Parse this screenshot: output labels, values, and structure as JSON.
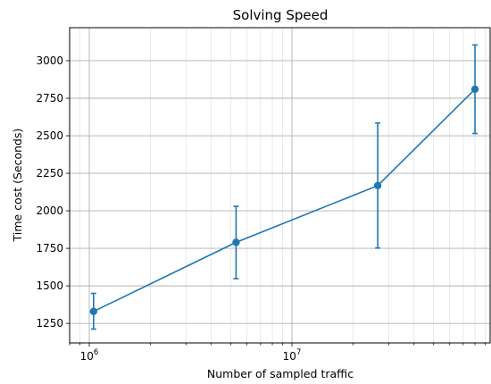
{
  "chart_data": {
    "type": "line",
    "title": "Solving Speed",
    "xlabel": "Number of sampled traffic",
    "ylabel": "Time cost (Seconds)",
    "x_scale": "log",
    "xlim": [
      800000,
      95000000
    ],
    "ylim": [
      1120,
      3220
    ],
    "x_ticks": [
      {
        "value": 1000000,
        "base": "10",
        "exp": "6"
      },
      {
        "value": 10000000,
        "base": "10",
        "exp": "7"
      }
    ],
    "y_ticks": [
      1250,
      1500,
      1750,
      2000,
      2250,
      2500,
      2750,
      3000
    ],
    "grid": "both (major and minor)",
    "series": [
      {
        "color": "#1f77b4",
        "marker": "circle",
        "x": [
          1050000,
          5300000,
          26500000,
          80000000
        ],
        "y": [
          1330,
          1790,
          2168,
          2810
        ],
        "err_low": [
          1212,
          1548,
          1752,
          2515
        ],
        "err_high": [
          1450,
          2030,
          2585,
          3105
        ]
      }
    ]
  }
}
